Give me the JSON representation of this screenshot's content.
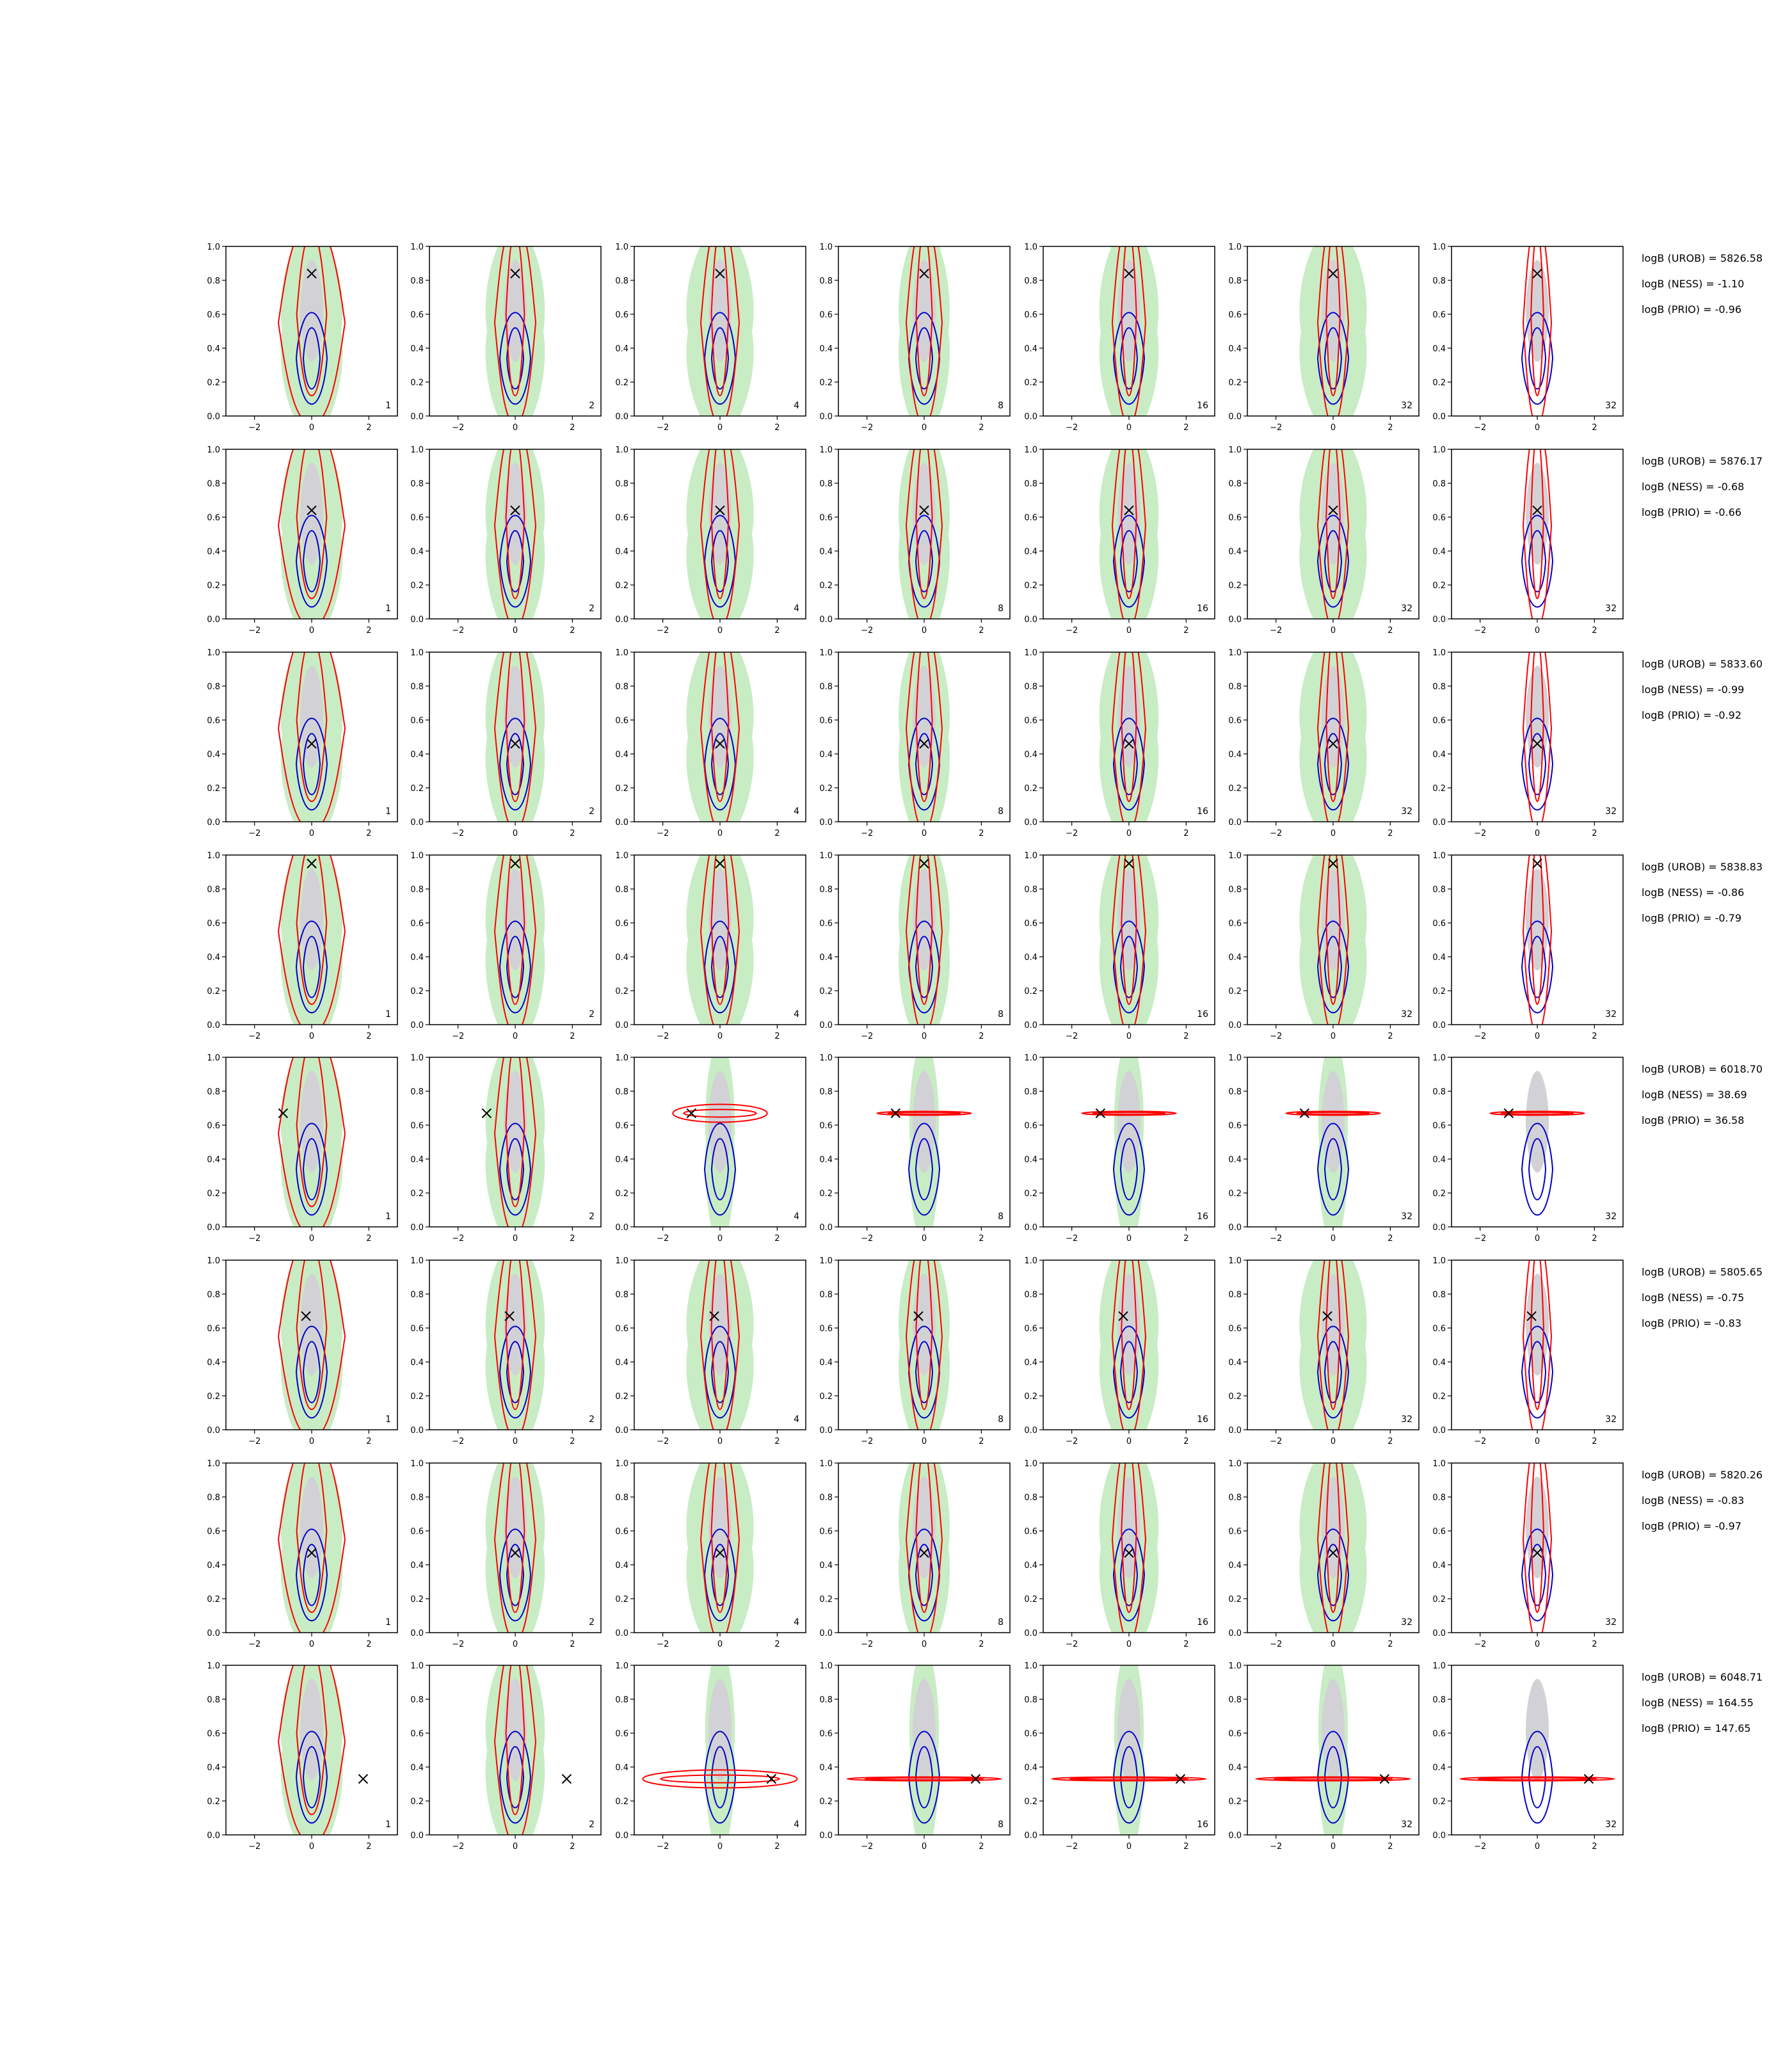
{
  "colors": {
    "prior_fill": "#c8ecc4",
    "posterior_fill": "#d2d2d6",
    "prior_contour": "#ff0000",
    "posterior_contour": "#0000cc",
    "truth_marker": "#000000"
  },
  "chart_data": {
    "type": "contour-grid",
    "title": "",
    "grid": false,
    "legend": "none",
    "rows": 8,
    "cols": 7,
    "xlim": [
      -3,
      3
    ],
    "ylim": [
      0,
      1
    ],
    "x_ticks": [
      "−2",
      "0",
      "2"
    ],
    "y_ticks": [
      "0.0",
      "0.2",
      "0.4",
      "0.6",
      "0.8",
      "1.0"
    ],
    "column_labels": [
      "1",
      "2",
      "4",
      "8",
      "16",
      "32",
      "32"
    ],
    "rows_data": [
      {
        "truth": [
          0.0,
          0.84
        ],
        "logB": [
          "logB (UROB) = 5826.58",
          "logB (NESS) = -1.10",
          "logB (PRIO) = -0.96"
        ]
      },
      {
        "truth": [
          0.0,
          0.64
        ],
        "logB": [
          "logB (UROB) = 5876.17",
          "logB (NESS) = -0.68",
          "logB (PRIO) = -0.66"
        ]
      },
      {
        "truth": [
          0.0,
          0.46
        ],
        "logB": [
          "logB (UROB) = 5833.60",
          "logB (NESS) = -0.99",
          "logB (PRIO) = -0.92"
        ]
      },
      {
        "truth": [
          0.0,
          0.95
        ],
        "logB": [
          "logB (UROB) = 5838.83",
          "logB (NESS) = -0.86",
          "logB (PRIO) = -0.79"
        ]
      },
      {
        "truth": [
          -1.0,
          0.67
        ],
        "logB": [
          "logB (UROB) = 6018.70",
          "logB (NESS) = 38.69",
          "logB (PRIO) = 36.58"
        ]
      },
      {
        "truth": [
          -0.2,
          0.67
        ],
        "logB": [
          "logB (UROB) = 5805.65",
          "logB (NESS) = -0.75",
          "logB (PRIO) = -0.83"
        ]
      },
      {
        "truth": [
          0.0,
          0.47
        ],
        "logB": [
          "logB (UROB) = 5820.26",
          "logB (NESS) = -0.83",
          "logB (PRIO) = -0.97"
        ]
      },
      {
        "truth": [
          1.8,
          0.33
        ],
        "logB": [
          "logB (UROB) = 6048.71",
          "logB (NESS) = 164.55",
          "logB (PRIO) = 147.65"
        ]
      }
    ]
  }
}
